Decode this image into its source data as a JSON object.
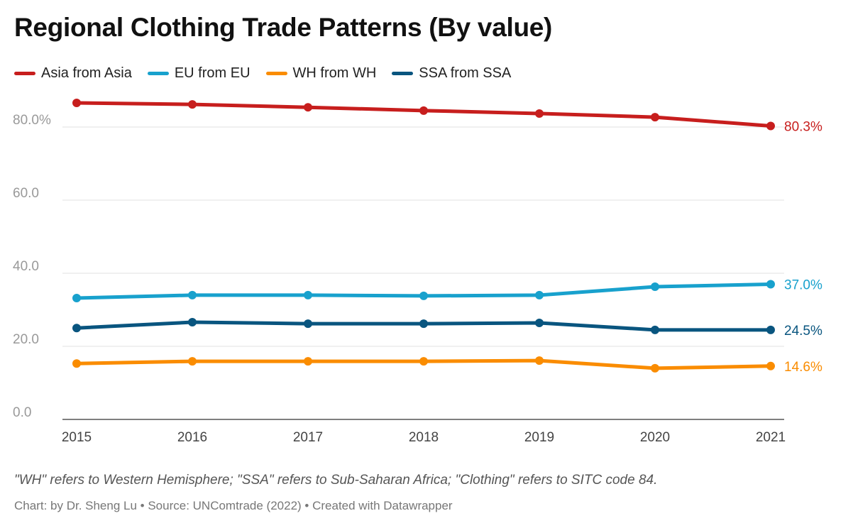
{
  "chart_data": {
    "type": "line",
    "title": "Regional Clothing Trade Patterns (By value)",
    "categories": [
      "2015",
      "2016",
      "2017",
      "2018",
      "2019",
      "2020",
      "2021"
    ],
    "ylim": [
      0,
      90
    ],
    "yticks": [
      "0.0",
      "20.0",
      "40.0",
      "60.0",
      "80.0%"
    ],
    "ytick_values": [
      0,
      20,
      40,
      60,
      80
    ],
    "grid": true,
    "legend": "top-left",
    "series": [
      {
        "name": "Asia from Asia",
        "color": "#c71e1d",
        "values": [
          86.6,
          86.2,
          85.4,
          84.5,
          83.7,
          82.7,
          80.3
        ],
        "end_label": "80.3%"
      },
      {
        "name": "EU from EU",
        "color": "#18a1cd",
        "values": [
          33.2,
          34.0,
          34.0,
          33.8,
          34.0,
          36.3,
          37.0
        ],
        "end_label": "37.0%"
      },
      {
        "name": "WH from WH",
        "color": "#fa8c00",
        "values": [
          15.3,
          15.9,
          15.9,
          15.9,
          16.1,
          14.0,
          14.6
        ],
        "end_label": "14.6%"
      },
      {
        "name": "SSA from SSA",
        "color": "#09557f",
        "values": [
          25.0,
          26.6,
          26.2,
          26.2,
          26.4,
          24.5,
          24.5
        ],
        "end_label": "24.5%"
      }
    ]
  },
  "notes": "\"WH\" refers to Western Hemisphere; \"SSA\" refers to Sub-Saharan Africa; \"Clothing\" refers to SITC code 84.",
  "source": "Chart: by Dr. Sheng Lu • Source: UNComtrade (2022) • Created with Datawrapper"
}
